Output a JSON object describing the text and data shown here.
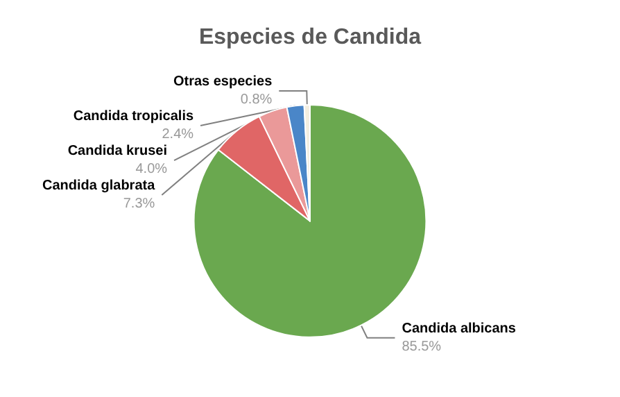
{
  "chart_data": {
    "type": "pie",
    "title": "Especies de Candida",
    "categories": [
      "Candida albicans",
      "Candida glabrata",
      "Candida krusei",
      "Candida tropicalis",
      "Otras especies"
    ],
    "values": [
      85.5,
      7.3,
      4.0,
      2.4,
      0.8
    ],
    "value_labels": [
      "85.5%",
      "7.3%",
      "4.0%",
      "2.4%",
      "0.8%"
    ],
    "colors": [
      "#6aa84f",
      "#e06666",
      "#ea9999",
      "#4a86c8",
      "#f3eee0"
    ],
    "legend": false
  }
}
